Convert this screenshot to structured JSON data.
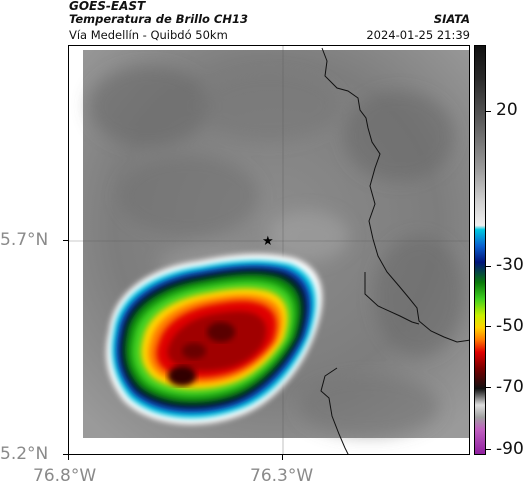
{
  "header": {
    "satellite": "GOES-EAST",
    "product": "Temperatura de Brillo CH13",
    "organization": "SIATA",
    "route": "Vía Medellín - Quibdó 50km",
    "timestamp": "2024-01-25 21:39"
  },
  "axes": {
    "y_ticks": [
      "5.7°N",
      "5.2°N"
    ],
    "x_ticks": [
      "76.8°W",
      "76.3°W"
    ]
  },
  "colorbar": {
    "labels": [
      "20",
      "-30",
      "-50",
      "-70",
      "-90"
    ]
  },
  "map": {
    "marker_icon": "star-icon",
    "storm_colors": [
      "#ffffff",
      "#00c8e0",
      "#0a40b0",
      "#000a40",
      "#0a8a0a",
      "#40d020",
      "#ffd400",
      "#ff7a00",
      "#e00000",
      "#8a0000",
      "#2a0000"
    ]
  }
}
